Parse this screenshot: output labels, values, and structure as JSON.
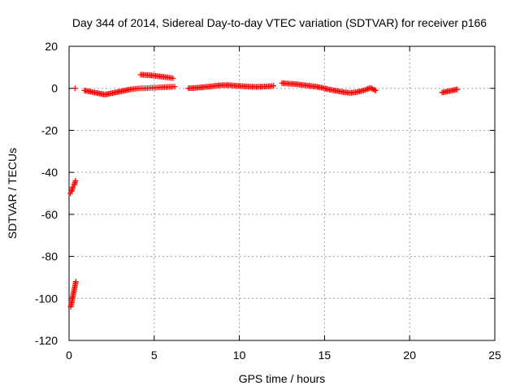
{
  "chart_data": {
    "type": "scatter",
    "title": "Day 344 of 2014, Sidereal Day-to-day VTEC variation (SDTVAR) for receiver p166",
    "xlabel": "GPS time / hours",
    "ylabel": "SDTVAR / TECUs",
    "xlim": [
      0,
      25
    ],
    "ylim": [
      -120,
      20
    ],
    "xticks": [
      0,
      5,
      10,
      15,
      20,
      25
    ],
    "yticks": [
      -120,
      -100,
      -80,
      -60,
      -40,
      -20,
      0,
      20
    ],
    "grid": true,
    "marker": "+",
    "color": "#ff0000",
    "segments": [
      {
        "x": [
          0.08,
          0.15,
          0.22,
          0.3,
          0.38
        ],
        "y": [
          -50,
          -49,
          -47,
          -46,
          -44
        ]
      },
      {
        "x": [
          0.1,
          0.15,
          0.2,
          0.25,
          0.3,
          0.35,
          0.4
        ],
        "y": [
          -104,
          -102,
          -100,
          -98,
          -96,
          -94,
          -92
        ]
      },
      {
        "x": [
          0.35
        ],
        "y": [
          0
        ]
      },
      {
        "x": [
          0.9,
          1.2,
          1.5,
          1.8,
          2.1,
          2.4,
          2.7,
          3.0,
          3.3,
          3.6,
          3.9,
          4.2,
          4.5,
          4.8,
          5.1,
          5.4,
          5.7,
          6.0,
          6.2
        ],
        "y": [
          -1,
          -1.5,
          -2,
          -2.5,
          -3,
          -2.5,
          -2,
          -1.5,
          -1,
          -0.5,
          -0.2,
          0,
          0,
          0.2,
          0.3,
          0.5,
          0.6,
          0.7,
          0.8
        ]
      },
      {
        "x": [
          4.2,
          4.6,
          5.0,
          5.4,
          5.8,
          6.1
        ],
        "y": [
          6.5,
          6.3,
          6,
          5.6,
          5.2,
          4.8
        ]
      },
      {
        "x": [
          7.0,
          7.4,
          7.8,
          8.2,
          8.6,
          9.0,
          9.4,
          9.8,
          10.2,
          10.6,
          11.0,
          11.4,
          11.8,
          12.0
        ],
        "y": [
          0,
          0.2,
          0.5,
          0.8,
          1.2,
          1.5,
          1.5,
          1.2,
          1.0,
          0.8,
          0.7,
          0.8,
          1.0,
          1.2
        ]
      },
      {
        "x": [
          12.5,
          12.9,
          13.3,
          13.7,
          14.1,
          14.5,
          14.9,
          15.3,
          15.7,
          16.1,
          16.5,
          16.9,
          17.3,
          17.7,
          18.0
        ],
        "y": [
          2.5,
          2.2,
          2.0,
          1.6,
          1.2,
          0.8,
          0.2,
          -0.6,
          -1.2,
          -1.8,
          -2.2,
          -1.8,
          -1.0,
          0.2,
          -1.0
        ]
      },
      {
        "x": [
          21.9,
          22.2,
          22.5,
          22.8
        ],
        "y": [
          -2,
          -1.5,
          -1,
          -0.5
        ]
      }
    ]
  }
}
